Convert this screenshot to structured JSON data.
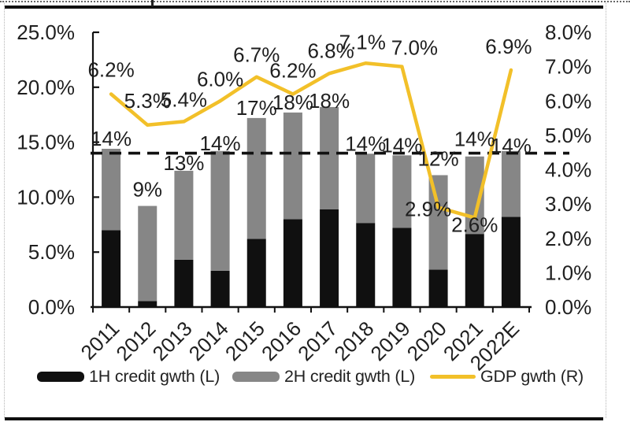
{
  "chart_data": {
    "type": "bar+line",
    "categories": [
      "2011",
      "2012",
      "2013",
      "2014",
      "2015",
      "2016",
      "2017",
      "2018",
      "2019",
      "2020",
      "2021",
      "2022E"
    ],
    "series": [
      {
        "name": "1H credit gwth (L)",
        "type": "bar",
        "axis": "left",
        "color": "#101010",
        "values": [
          7.0,
          0.55,
          4.3,
          3.3,
          6.2,
          8.0,
          8.9,
          7.65,
          7.2,
          3.4,
          6.65,
          8.2
        ]
      },
      {
        "name": "2H credit gwth (L)",
        "type": "bar",
        "axis": "left",
        "color": "#868686",
        "values": [
          7.4,
          8.65,
          8.1,
          10.9,
          11.0,
          9.7,
          9.3,
          6.3,
          6.6,
          8.6,
          7.05,
          6.0
        ]
      },
      {
        "name": "GDP gwth (R)",
        "type": "line",
        "axis": "right",
        "color": "#F2C029",
        "values": [
          6.2,
          5.3,
          5.4,
          6.0,
          6.7,
          6.2,
          6.8,
          7.1,
          7.0,
          2.9,
          2.6,
          6.9
        ]
      }
    ],
    "bar_total_labels": [
      "14%",
      "9%",
      "13%",
      "14%",
      "17%",
      "18%",
      "18%",
      "14%",
      "14%",
      "12%",
      "14%",
      "14%"
    ],
    "line_labels": [
      "6.2%",
      "5.3%",
      "5.4%",
      "6.0%",
      "6.7%",
      "6.2%",
      "6.8%",
      "7.1%",
      "7.0%",
      "2.9%",
      "2.6%",
      "6.9%"
    ],
    "left_axis": {
      "min": 0,
      "max": 25,
      "tick_labels": [
        "25.0%",
        "20.0%",
        "15.0%",
        "10.0%",
        "5.0%",
        "0.0%"
      ]
    },
    "right_axis": {
      "min": 0,
      "max": 8,
      "tick_labels": [
        "8.0%",
        "7.0%",
        "6.0%",
        "5.0%",
        "4.0%",
        "3.0%",
        "2.0%",
        "1.0%",
        "0.0%"
      ]
    },
    "reference_line": {
      "value": 14,
      "axis": "left",
      "style": "dashed",
      "color": "#111111"
    },
    "grid": "off",
    "legend_position": "bottom"
  }
}
